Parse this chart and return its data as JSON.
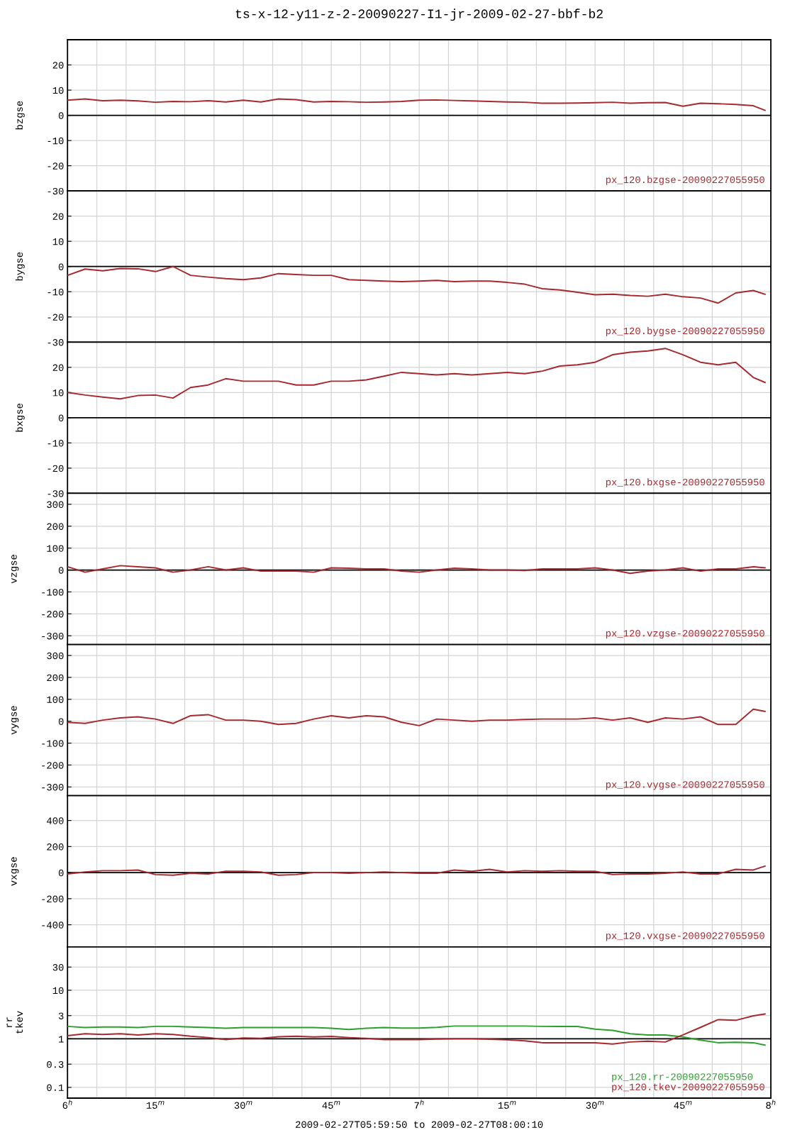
{
  "chart_data": [
    {
      "type": "line",
      "title": "ts-x-12-y11-z-2-20090227-I1-jr-2009-02-27-bbf-b2",
      "ylabel": "bzgse",
      "x": [
        "2009-02-27T06:00",
        "2009-02-27T06:03",
        "2009-02-27T06:06",
        "2009-02-27T06:09",
        "2009-02-27T06:12",
        "2009-02-27T06:15",
        "2009-02-27T06:18",
        "2009-02-27T06:21",
        "2009-02-27T06:24",
        "2009-02-27T06:27",
        "2009-02-27T06:30",
        "2009-02-27T06:33",
        "2009-02-27T06:36",
        "2009-02-27T06:39",
        "2009-02-27T06:42",
        "2009-02-27T06:45",
        "2009-02-27T06:48",
        "2009-02-27T06:51",
        "2009-02-27T06:54",
        "2009-02-27T06:57",
        "2009-02-27T07:00",
        "2009-02-27T07:03",
        "2009-02-27T07:06",
        "2009-02-27T07:09",
        "2009-02-27T07:12",
        "2009-02-27T07:15",
        "2009-02-27T07:18",
        "2009-02-27T07:21",
        "2009-02-27T07:24",
        "2009-02-27T07:27",
        "2009-02-27T07:30",
        "2009-02-27T07:33",
        "2009-02-27T07:36",
        "2009-02-27T07:39",
        "2009-02-27T07:42",
        "2009-02-27T07:45",
        "2009-02-27T07:48",
        "2009-02-27T07:51",
        "2009-02-27T07:54",
        "2009-02-27T07:57",
        "2009-02-27T07:59"
      ],
      "series": [
        {
          "name": "px_120.bzgse-20090227055950",
          "color": "#a8282d",
          "values": [
            6,
            6.5,
            5.8,
            6,
            5.7,
            5.2,
            5.5,
            5.4,
            5.8,
            5.3,
            6,
            5.3,
            6.5,
            6.2,
            5.3,
            5.5,
            5.4,
            5.2,
            5.3,
            5.5,
            6,
            6.1,
            5.9,
            5.7,
            5.5,
            5.3,
            5.2,
            4.8,
            4.8,
            4.9,
            5,
            5.2,
            4.8,
            5,
            5.1,
            3.6,
            4.8,
            4.6,
            4.3,
            3.8,
            2
          ]
        }
      ],
      "xlim": [
        "2009-02-27T06:00",
        "2009-02-27T08:00"
      ],
      "ylim": [
        -30,
        30
      ],
      "yticks": [
        -30,
        -20,
        -10,
        0,
        10,
        20
      ],
      "grid": true,
      "tick_labels": "y",
      "legend": "bottom right",
      "ref_lines": [
        {
          "axis": "y",
          "value": 0
        }
      ]
    },
    {
      "type": "line",
      "ylabel": "bygse",
      "x": [
        "2009-02-27T06:00",
        "2009-02-27T06:03",
        "2009-02-27T06:06",
        "2009-02-27T06:09",
        "2009-02-27T06:12",
        "2009-02-27T06:15",
        "2009-02-27T06:18",
        "2009-02-27T06:21",
        "2009-02-27T06:24",
        "2009-02-27T06:27",
        "2009-02-27T06:30",
        "2009-02-27T06:33",
        "2009-02-27T06:36",
        "2009-02-27T06:39",
        "2009-02-27T06:42",
        "2009-02-27T06:45",
        "2009-02-27T06:48",
        "2009-02-27T06:51",
        "2009-02-27T06:54",
        "2009-02-27T06:57",
        "2009-02-27T07:00",
        "2009-02-27T07:03",
        "2009-02-27T07:06",
        "2009-02-27T07:09",
        "2009-02-27T07:12",
        "2009-02-27T07:15",
        "2009-02-27T07:18",
        "2009-02-27T07:21",
        "2009-02-27T07:24",
        "2009-02-27T07:27",
        "2009-02-27T07:30",
        "2009-02-27T07:33",
        "2009-02-27T07:36",
        "2009-02-27T07:39",
        "2009-02-27T07:42",
        "2009-02-27T07:45",
        "2009-02-27T07:48",
        "2009-02-27T07:51",
        "2009-02-27T07:54",
        "2009-02-27T07:57",
        "2009-02-27T07:59"
      ],
      "series": [
        {
          "name": "px_120.bygse-20090227055950",
          "color": "#a8282d",
          "values": [
            -3.5,
            -1,
            -1.7,
            -0.8,
            -0.9,
            -2,
            0,
            -3.5,
            -4.2,
            -4.8,
            -5.2,
            -4.5,
            -2.8,
            -3.2,
            -3.5,
            -3.5,
            -5.2,
            -5.5,
            -5.8,
            -6,
            -5.8,
            -5.5,
            -6,
            -5.8,
            -5.8,
            -6.3,
            -7,
            -8.8,
            -9.3,
            -10.2,
            -11.2,
            -11,
            -11.5,
            -11.8,
            -11,
            -12,
            -12.5,
            -14.5,
            -10.5,
            -9.5,
            -11
          ]
        }
      ],
      "xlim": [
        "2009-02-27T06:00",
        "2009-02-27T08:00"
      ],
      "ylim": [
        -30,
        30
      ],
      "yticks": [
        -30,
        -20,
        -10,
        0,
        10,
        20
      ],
      "grid": true,
      "tick_labels": "y",
      "legend": "bottom right",
      "ref_lines": [
        {
          "axis": "y",
          "value": 0
        }
      ]
    },
    {
      "type": "line",
      "ylabel": "bxgse",
      "x": [
        "2009-02-27T06:00",
        "2009-02-27T06:03",
        "2009-02-27T06:06",
        "2009-02-27T06:09",
        "2009-02-27T06:12",
        "2009-02-27T06:15",
        "2009-02-27T06:18",
        "2009-02-27T06:21",
        "2009-02-27T06:24",
        "2009-02-27T06:27",
        "2009-02-27T06:30",
        "2009-02-27T06:33",
        "2009-02-27T06:36",
        "2009-02-27T06:39",
        "2009-02-27T06:42",
        "2009-02-27T06:45",
        "2009-02-27T06:48",
        "2009-02-27T06:51",
        "2009-02-27T06:54",
        "2009-02-27T06:57",
        "2009-02-27T07:00",
        "2009-02-27T07:03",
        "2009-02-27T07:06",
        "2009-02-27T07:09",
        "2009-02-27T07:12",
        "2009-02-27T07:15",
        "2009-02-27T07:18",
        "2009-02-27T07:21",
        "2009-02-27T07:24",
        "2009-02-27T07:27",
        "2009-02-27T07:30",
        "2009-02-27T07:33",
        "2009-02-27T07:36",
        "2009-02-27T07:39",
        "2009-02-27T07:42",
        "2009-02-27T07:45",
        "2009-02-27T07:48",
        "2009-02-27T07:51",
        "2009-02-27T07:54",
        "2009-02-27T07:57",
        "2009-02-27T07:59"
      ],
      "series": [
        {
          "name": "px_120.bxgse-20090227055950",
          "color": "#a8282d",
          "values": [
            10,
            9,
            8.2,
            7.5,
            8.8,
            9,
            7.8,
            12,
            13,
            15.5,
            14.5,
            14.5,
            14.5,
            13,
            13,
            14.5,
            14.5,
            15,
            16.5,
            18,
            17.5,
            17,
            17.5,
            17,
            17.5,
            18,
            17.5,
            18.5,
            20.5,
            21,
            22,
            25,
            26,
            26.5,
            27.5,
            25,
            22,
            21,
            22,
            16,
            14
          ]
        }
      ],
      "xlim": [
        "2009-02-27T06:00",
        "2009-02-27T08:00"
      ],
      "ylim": [
        -30,
        30
      ],
      "yticks": [
        -30,
        -20,
        -10,
        0,
        10,
        20
      ],
      "grid": true,
      "tick_labels": "y",
      "legend": "bottom right",
      "ref_lines": [
        {
          "axis": "y",
          "value": 0
        }
      ]
    },
    {
      "type": "line",
      "ylabel": "vzgse",
      "x": [
        "2009-02-27T06:00",
        "2009-02-27T06:03",
        "2009-02-27T06:06",
        "2009-02-27T06:09",
        "2009-02-27T06:12",
        "2009-02-27T06:15",
        "2009-02-27T06:18",
        "2009-02-27T06:21",
        "2009-02-27T06:24",
        "2009-02-27T06:27",
        "2009-02-27T06:30",
        "2009-02-27T06:33",
        "2009-02-27T06:36",
        "2009-02-27T06:39",
        "2009-02-27T06:42",
        "2009-02-27T06:45",
        "2009-02-27T06:48",
        "2009-02-27T06:51",
        "2009-02-27T06:54",
        "2009-02-27T06:57",
        "2009-02-27T07:00",
        "2009-02-27T07:03",
        "2009-02-27T07:06",
        "2009-02-27T07:09",
        "2009-02-27T07:12",
        "2009-02-27T07:15",
        "2009-02-27T07:18",
        "2009-02-27T07:21",
        "2009-02-27T07:24",
        "2009-02-27T07:27",
        "2009-02-27T07:30",
        "2009-02-27T07:33",
        "2009-02-27T07:36",
        "2009-02-27T07:39",
        "2009-02-27T07:42",
        "2009-02-27T07:45",
        "2009-02-27T07:48",
        "2009-02-27T07:51",
        "2009-02-27T07:54",
        "2009-02-27T07:57",
        "2009-02-27T07:59"
      ],
      "series": [
        {
          "name": "px_120.vzgse-20090227055950",
          "color": "#a8282d",
          "values": [
            15,
            -10,
            5,
            20,
            15,
            10,
            -10,
            0,
            15,
            0,
            10,
            -5,
            -5,
            -5,
            -10,
            10,
            8,
            5,
            5,
            -5,
            -10,
            0,
            8,
            5,
            0,
            0,
            -2,
            5,
            5,
            5,
            10,
            0,
            -15,
            -5,
            0,
            10,
            -5,
            5,
            5,
            15,
            10
          ]
        }
      ],
      "xlim": [
        "2009-02-27T06:00",
        "2009-02-27T08:00"
      ],
      "ylim": [
        -340,
        350
      ],
      "yticks": [
        -300,
        -200,
        -100,
        0,
        100,
        200,
        300
      ],
      "grid": true,
      "tick_labels": "y",
      "legend": "bottom right",
      "ref_lines": [
        {
          "axis": "y",
          "value": 0
        }
      ]
    },
    {
      "type": "line",
      "ylabel": "vygse",
      "x": [
        "2009-02-27T06:00",
        "2009-02-27T06:03",
        "2009-02-27T06:06",
        "2009-02-27T06:09",
        "2009-02-27T06:12",
        "2009-02-27T06:15",
        "2009-02-27T06:18",
        "2009-02-27T06:21",
        "2009-02-27T06:24",
        "2009-02-27T06:27",
        "2009-02-27T06:30",
        "2009-02-27T06:33",
        "2009-02-27T06:36",
        "2009-02-27T06:39",
        "2009-02-27T06:42",
        "2009-02-27T06:45",
        "2009-02-27T06:48",
        "2009-02-27T06:51",
        "2009-02-27T06:54",
        "2009-02-27T06:57",
        "2009-02-27T07:00",
        "2009-02-27T07:03",
        "2009-02-27T07:06",
        "2009-02-27T07:09",
        "2009-02-27T07:12",
        "2009-02-27T07:15",
        "2009-02-27T07:18",
        "2009-02-27T07:21",
        "2009-02-27T07:24",
        "2009-02-27T07:27",
        "2009-02-27T07:30",
        "2009-02-27T07:33",
        "2009-02-27T07:36",
        "2009-02-27T07:39",
        "2009-02-27T07:42",
        "2009-02-27T07:45",
        "2009-02-27T07:48",
        "2009-02-27T07:51",
        "2009-02-27T07:54",
        "2009-02-27T07:57",
        "2009-02-27T07:59"
      ],
      "series": [
        {
          "name": "px_120.vygse-20090227055950",
          "color": "#a8282d",
          "values": [
            -5,
            -10,
            5,
            15,
            20,
            10,
            -10,
            25,
            30,
            5,
            5,
            0,
            -15,
            -10,
            10,
            25,
            15,
            25,
            20,
            -5,
            -20,
            10,
            5,
            0,
            5,
            5,
            8,
            10,
            10,
            10,
            15,
            5,
            15,
            -5,
            15,
            10,
            20,
            -15,
            -15,
            55,
            45
          ]
        }
      ],
      "xlim": [
        "2009-02-27T06:00",
        "2009-02-27T08:00"
      ],
      "ylim": [
        -340,
        350
      ],
      "yticks": [
        -300,
        -200,
        -100,
        0,
        100,
        200,
        300
      ],
      "grid": true,
      "tick_labels": "y",
      "legend": "bottom right"
    },
    {
      "type": "line",
      "ylabel": "vxgse",
      "x": [
        "2009-02-27T06:00",
        "2009-02-27T06:03",
        "2009-02-27T06:06",
        "2009-02-27T06:09",
        "2009-02-27T06:12",
        "2009-02-27T06:15",
        "2009-02-27T06:18",
        "2009-02-27T06:21",
        "2009-02-27T06:24",
        "2009-02-27T06:27",
        "2009-02-27T06:30",
        "2009-02-27T06:33",
        "2009-02-27T06:36",
        "2009-02-27T06:39",
        "2009-02-27T06:42",
        "2009-02-27T06:45",
        "2009-02-27T06:48",
        "2009-02-27T06:51",
        "2009-02-27T06:54",
        "2009-02-27T06:57",
        "2009-02-27T07:00",
        "2009-02-27T07:03",
        "2009-02-27T07:06",
        "2009-02-27T07:09",
        "2009-02-27T07:12",
        "2009-02-27T07:15",
        "2009-02-27T07:18",
        "2009-02-27T07:21",
        "2009-02-27T07:24",
        "2009-02-27T07:27",
        "2009-02-27T07:30",
        "2009-02-27T07:33",
        "2009-02-27T07:36",
        "2009-02-27T07:39",
        "2009-02-27T07:42",
        "2009-02-27T07:45",
        "2009-02-27T07:48",
        "2009-02-27T07:51",
        "2009-02-27T07:54",
        "2009-02-27T07:57",
        "2009-02-27T07:59"
      ],
      "series": [
        {
          "name": "px_120.vxgse-20090227055950",
          "color": "#a8282d",
          "values": [
            -10,
            5,
            15,
            15,
            20,
            -15,
            -20,
            -5,
            -10,
            10,
            10,
            5,
            -20,
            -15,
            0,
            0,
            -5,
            0,
            5,
            0,
            -5,
            -5,
            20,
            10,
            25,
            5,
            15,
            10,
            15,
            10,
            10,
            -15,
            -10,
            -10,
            -5,
            5,
            -10,
            -10,
            25,
            20,
            50
          ]
        }
      ],
      "xlim": [
        "2009-02-27T06:00",
        "2009-02-27T08:00"
      ],
      "ylim": [
        -570,
        590
      ],
      "yticks": [
        -400,
        -200,
        0,
        200,
        400
      ],
      "grid": true,
      "tick_labels": "y",
      "legend": "bottom right",
      "ref_lines": [
        {
          "axis": "y",
          "value": 0
        }
      ]
    },
    {
      "type": "line",
      "ylabel": "rr\ntkev",
      "xlabel": "2009-02-27T05:59:50 to 2009-02-27T08:00:10",
      "x": [
        "2009-02-27T06:00",
        "2009-02-27T06:03",
        "2009-02-27T06:06",
        "2009-02-27T06:09",
        "2009-02-27T06:12",
        "2009-02-27T06:15",
        "2009-02-27T06:18",
        "2009-02-27T06:21",
        "2009-02-27T06:24",
        "2009-02-27T06:27",
        "2009-02-27T06:30",
        "2009-02-27T06:33",
        "2009-02-27T06:36",
        "2009-02-27T06:39",
        "2009-02-27T06:42",
        "2009-02-27T06:45",
        "2009-02-27T06:48",
        "2009-02-27T06:51",
        "2009-02-27T06:54",
        "2009-02-27T06:57",
        "2009-02-27T07:00",
        "2009-02-27T07:03",
        "2009-02-27T07:06",
        "2009-02-27T07:09",
        "2009-02-27T07:12",
        "2009-02-27T07:15",
        "2009-02-27T07:18",
        "2009-02-27T07:21",
        "2009-02-27T07:24",
        "2009-02-27T07:27",
        "2009-02-27T07:30",
        "2009-02-27T07:33",
        "2009-02-27T07:36",
        "2009-02-27T07:39",
        "2009-02-27T07:42",
        "2009-02-27T07:45",
        "2009-02-27T07:48",
        "2009-02-27T07:51",
        "2009-02-27T07:54",
        "2009-02-27T07:57",
        "2009-02-27T07:59"
      ],
      "series": [
        {
          "name": "px_120.rr-20090227055950",
          "color": "#2ca02c",
          "values": [
            1.8,
            1.7,
            1.75,
            1.75,
            1.7,
            1.8,
            1.8,
            1.75,
            1.7,
            1.65,
            1.7,
            1.7,
            1.7,
            1.7,
            1.7,
            1.65,
            1.55,
            1.65,
            1.7,
            1.66,
            1.66,
            1.72,
            1.83,
            1.83,
            1.83,
            1.83,
            1.83,
            1.8,
            1.79,
            1.79,
            1.58,
            1.49,
            1.27,
            1.2,
            1.2,
            1.09,
            0.94,
            0.83,
            0.85,
            0.83,
            0.74
          ]
        },
        {
          "name": "px_120.tkev-20090227055950",
          "color": "#a8282d",
          "values": [
            1.16,
            1.27,
            1.23,
            1.27,
            1.2,
            1.27,
            1.23,
            1.13,
            1.06,
            0.96,
            1.04,
            1.02,
            1.1,
            1.13,
            1.09,
            1.12,
            1.06,
            1.02,
            0.96,
            0.96,
            0.96,
            0.99,
            1,
            1,
            0.98,
            0.95,
            0.91,
            0.83,
            0.83,
            0.83,
            0.83,
            0.78,
            0.86,
            0.89,
            0.86,
            1.2,
            1.72,
            2.48,
            2.4,
            2.97,
            3.24
          ]
        }
      ],
      "xlim": [
        "2009-02-27T06:00",
        "2009-02-27T08:00"
      ],
      "ylim": [
        0.06,
        78
      ],
      "log": "y",
      "yticks": [
        0.1,
        0.3,
        1,
        3,
        10,
        30
      ],
      "xticks": [
        {
          "value": "2009-02-27T06:00",
          "label": "6$^{h}$"
        },
        {
          "value": "2009-02-27T06:05",
          "label": null
        },
        {
          "value": "2009-02-27T06:10",
          "label": null
        },
        {
          "value": "2009-02-27T06:15",
          "label": "15$^{m}$"
        },
        {
          "value": "2009-02-27T06:20",
          "label": null
        },
        {
          "value": "2009-02-27T06:25",
          "label": null
        },
        {
          "value": "2009-02-27T06:30",
          "label": "30$^{m}$"
        },
        {
          "value": "2009-02-27T06:35",
          "label": null
        },
        {
          "value": "2009-02-27T06:40",
          "label": null
        },
        {
          "value": "2009-02-27T06:45",
          "label": "45$^{m}$"
        },
        {
          "value": "2009-02-27T06:50",
          "label": null
        },
        {
          "value": "2009-02-27T06:55",
          "label": null
        },
        {
          "value": "2009-02-27T07:00",
          "label": "7$^{h}$"
        },
        {
          "value": "2009-02-27T07:05",
          "label": null
        },
        {
          "value": "2009-02-27T07:10",
          "label": null
        },
        {
          "value": "2009-02-27T07:15",
          "label": "15$^{m}$"
        },
        {
          "value": "2009-02-27T07:20",
          "label": null
        },
        {
          "value": "2009-02-27T07:25",
          "label": null
        },
        {
          "value": "2009-02-27T07:30",
          "label": "30$^{m}$"
        },
        {
          "value": "2009-02-27T07:35",
          "label": null
        },
        {
          "value": "2009-02-27T07:40",
          "label": null
        },
        {
          "value": "2009-02-27T07:45",
          "label": "45$^{m}$"
        },
        {
          "value": "2009-02-27T07:50",
          "label": null
        },
        {
          "value": "2009-02-27T07:55",
          "label": null
        },
        {
          "value": "2009-02-27T08:00",
          "label": "8$^{h}$"
        }
      ],
      "grid": true,
      "legend": "bottom right",
      "ref_lines": [
        {
          "axis": "y",
          "value": 1
        }
      ]
    }
  ]
}
